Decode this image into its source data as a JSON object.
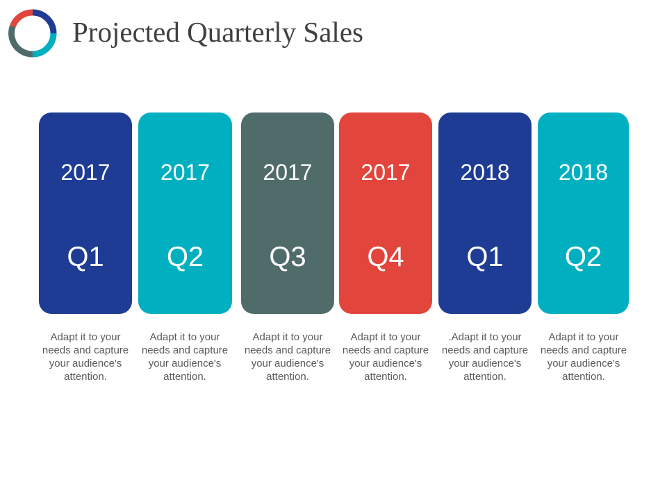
{
  "title": "Projected Quarterly Sales",
  "logo_colors": [
    "#e2453b",
    "#1e3c93",
    "#00b0c0",
    "#506c6a"
  ],
  "cards": [
    {
      "year": "2017",
      "quarter": "Q1",
      "color": "#1e3c93",
      "description": "Adapt it to your needs and capture your audience's attention."
    },
    {
      "year": "2017",
      "quarter": "Q2",
      "color": "#00b0c0",
      "description": "Adapt it to your needs and capture your audience's attention."
    },
    {
      "year": "2017",
      "quarter": "Q3",
      "color": "#506c6a",
      "description": "Adapt it to your needs and capture your audience's attention."
    },
    {
      "year": "2017",
      "quarter": "Q4",
      "color": "#e2453b",
      "description": "Adapt it to your needs and capture your audience's attention."
    },
    {
      "year": "2018",
      "quarter": "Q1",
      "color": "#1e3c93",
      "description": ".Adapt it to your needs and capture your audience's attention."
    },
    {
      "year": "2018",
      "quarter": "Q2",
      "color": "#00b0c0",
      "description": "Adapt it to your needs and capture your audience's attention."
    }
  ]
}
